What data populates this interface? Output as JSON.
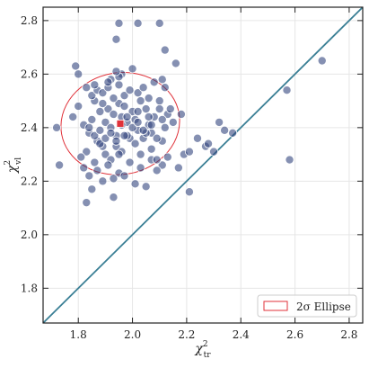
{
  "chart_data": {
    "type": "scatter",
    "xlabel": "χ",
    "xlabel_sup": "2",
    "xlabel_sub": "tr",
    "ylabel": "χ",
    "ylabel_sup": "2",
    "ylabel_sub": "vl",
    "xlim": [
      1.67,
      2.85
    ],
    "ylim": [
      1.67,
      2.85
    ],
    "xticks": [
      1.8,
      2.0,
      2.2,
      2.4,
      2.6,
      2.8
    ],
    "xtick_labels": [
      "1.8",
      "2.0",
      "2.2",
      "2.4",
      "2.6",
      "2.8"
    ],
    "yticks": [
      1.8,
      2.0,
      2.2,
      2.4,
      2.6,
      2.8
    ],
    "ytick_labels": [
      "1.8",
      "2.0",
      "2.2",
      "2.4",
      "2.6",
      "2.8"
    ],
    "grid": true,
    "legend": {
      "label": "2σ Ellipse",
      "placement": "bottom-right"
    },
    "colors": {
      "points": "#34467e",
      "point_edge": "#ffffff",
      "mean_marker": "#e0323a",
      "ellipse": "#e0323a",
      "diagonal": "#3a7f95",
      "grid": "#e6e6e6"
    },
    "series": [
      {
        "x": [
          1.8,
          1.78,
          1.82,
          1.85,
          1.84,
          1.88,
          1.86,
          1.9,
          1.91,
          1.87,
          1.89,
          1.93,
          1.95,
          1.92,
          1.94,
          1.96,
          1.98,
          1.97,
          2.0,
          2.02,
          2.01,
          2.04,
          2.03,
          2.06,
          2.08,
          2.07,
          2.1,
          2.12,
          2.11,
          2.13,
          2.15,
          1.83,
          1.81,
          1.86,
          1.88,
          1.9,
          1.92,
          1.94,
          1.96,
          1.99,
          2.01,
          2.03,
          2.05,
          2.07,
          2.09,
          1.85,
          1.87,
          1.89,
          1.91,
          1.93,
          1.95,
          1.97,
          1.99,
          2.02,
          2.04,
          2.06,
          2.08,
          2.1,
          1.84,
          1.86,
          1.88,
          1.9,
          1.92,
          1.94,
          1.96,
          1.98,
          2.0,
          2.02,
          2.04,
          2.06,
          1.82,
          1.87,
          1.91,
          1.95,
          1.99,
          2.03,
          2.07,
          2.11,
          1.89,
          1.93,
          1.97,
          2.01,
          2.05,
          2.09,
          2.13,
          1.83,
          1.85,
          1.95,
          1.94,
          2.02,
          2.1,
          2.12,
          2.16,
          2.18,
          1.96,
          2.0,
          1.79,
          1.8,
          1.92,
          1.95,
          1.94,
          1.91,
          1.86,
          1.83,
          1.72,
          1.73,
          2.05,
          2.07,
          2.11,
          2.14,
          2.17,
          2.21,
          2.24,
          2.27,
          2.28,
          2.3,
          2.32,
          2.34,
          2.37,
          2.19,
          2.21,
          2.57,
          2.58,
          2.7,
          1.93,
          1.95,
          2.02,
          2.11,
          1.84,
          1.89,
          1.97,
          2.09,
          2.12,
          1.98
        ],
        "y": [
          2.48,
          2.44,
          2.41,
          2.43,
          2.38,
          2.46,
          2.5,
          2.42,
          2.47,
          2.35,
          2.33,
          2.45,
          2.49,
          2.4,
          2.37,
          2.44,
          2.42,
          2.48,
          2.46,
          2.39,
          2.43,
          2.36,
          2.5,
          2.41,
          2.44,
          2.38,
          2.47,
          2.4,
          2.35,
          2.45,
          2.42,
          2.31,
          2.29,
          2.27,
          2.34,
          2.3,
          2.28,
          2.33,
          2.31,
          2.36,
          2.34,
          2.3,
          2.38,
          2.32,
          2.36,
          2.52,
          2.54,
          2.53,
          2.55,
          2.51,
          2.56,
          2.52,
          2.54,
          2.53,
          2.55,
          2.51,
          2.57,
          2.5,
          2.4,
          2.37,
          2.39,
          2.36,
          2.38,
          2.35,
          2.41,
          2.37,
          2.4,
          2.42,
          2.39,
          2.44,
          2.25,
          2.24,
          2.26,
          2.23,
          2.27,
          2.25,
          2.28,
          2.26,
          2.2,
          2.21,
          2.22,
          2.19,
          2.18,
          2.24,
          2.29,
          2.12,
          2.17,
          2.79,
          2.73,
          2.79,
          2.79,
          2.69,
          2.64,
          2.45,
          2.6,
          2.62,
          2.63,
          2.6,
          2.58,
          2.59,
          2.61,
          2.57,
          2.56,
          2.55,
          2.4,
          2.26,
          2.47,
          2.41,
          2.43,
          2.47,
          2.25,
          2.16,
          2.36,
          2.33,
          2.34,
          2.31,
          2.42,
          2.39,
          2.38,
          2.3,
          2.31,
          2.54,
          2.28,
          2.65,
          2.14,
          2.3,
          2.46,
          2.58,
          2.22,
          2.49,
          2.37,
          2.28,
          2.55,
          2.44
        ]
      }
    ],
    "mean": {
      "x": 1.955,
      "y": 2.415
    },
    "ellipse": {
      "cx": 1.955,
      "cy": 2.415,
      "rx": 0.22,
      "ry": 0.19
    },
    "diagonal": {
      "x": [
        1.67,
        2.85
      ],
      "y": [
        1.67,
        2.85
      ]
    }
  }
}
